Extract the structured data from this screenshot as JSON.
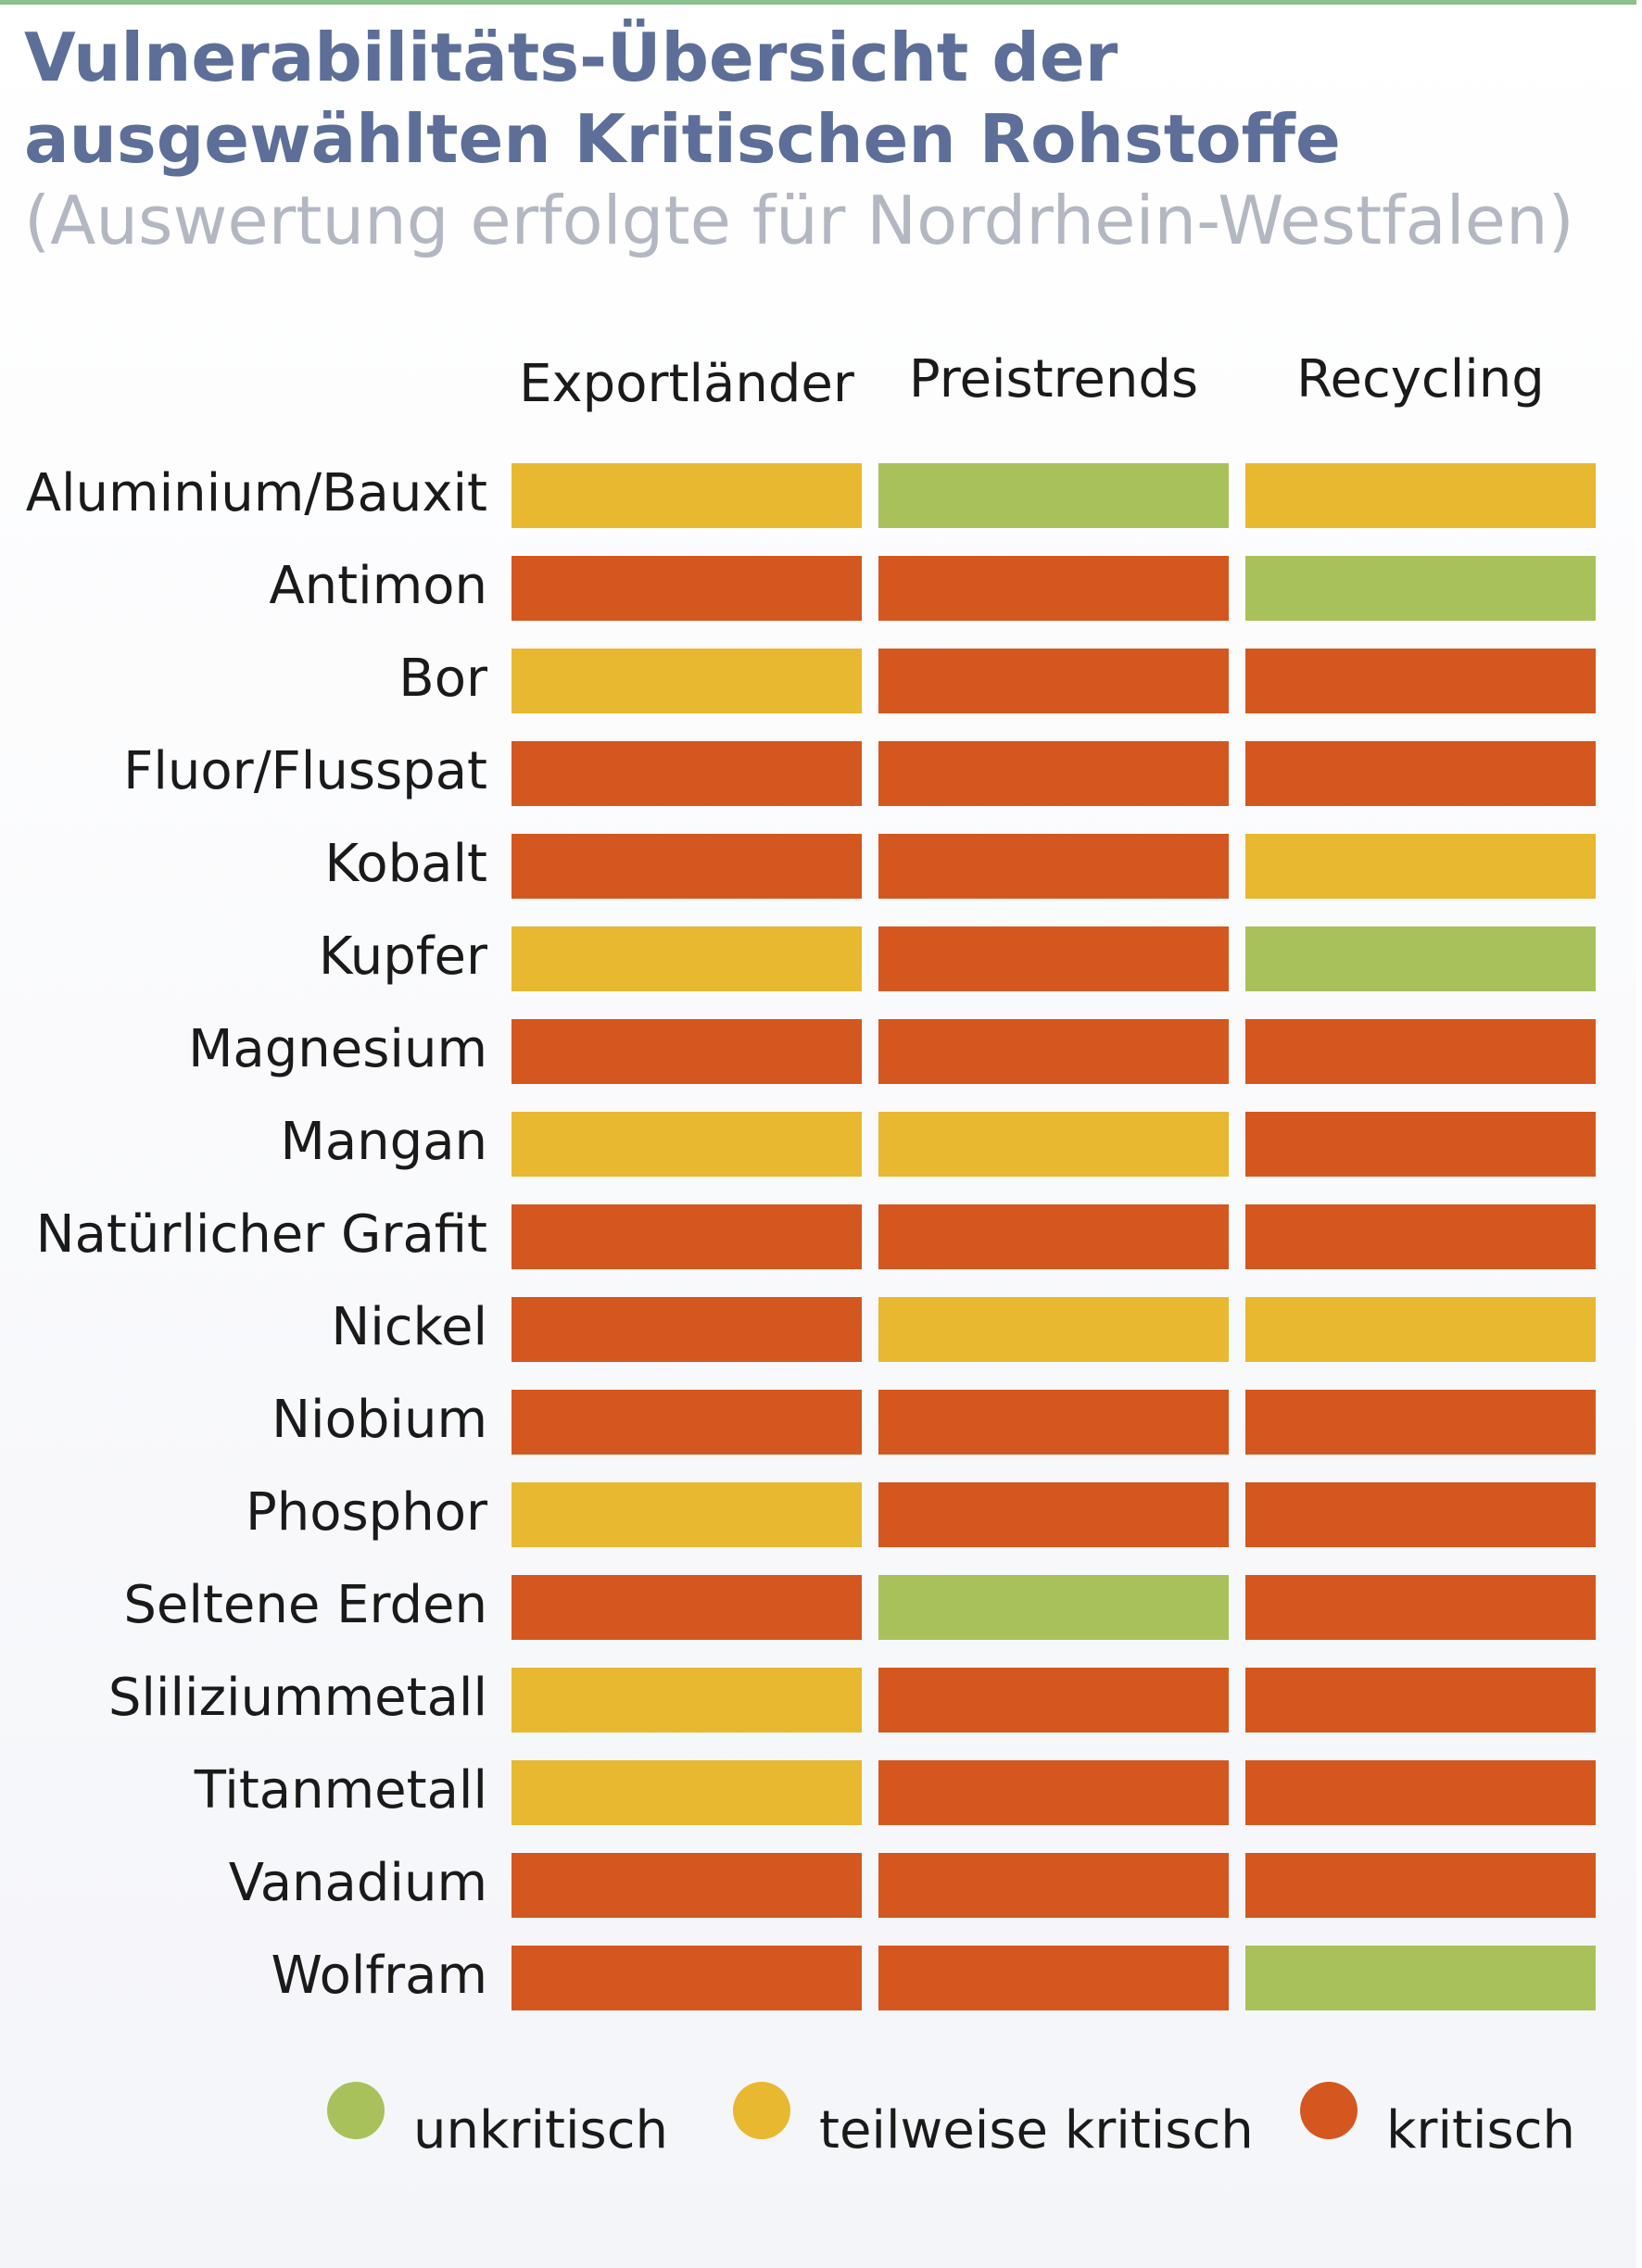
{
  "title": {
    "main": "Vulnerabilitäts-Übersicht der ausgewählten Kritischen Rohstoffe",
    "subtitle": "(Auswertung erfolgte für Nordrhein-Westfalen)"
  },
  "colors": {
    "unkritisch": "#a8c15a",
    "teilweise kritisch": "#e8b830",
    "kritisch": "#d4571f",
    "title": "#5d6f98",
    "subtitle": "#b3b7c1",
    "top_line": "#8cc08d"
  },
  "chart_data": {
    "type": "heatmap",
    "columns": [
      "Exportländer",
      "Preistrends",
      "Recycling"
    ],
    "rows": [
      {
        "label": "Aluminium/Bauxit",
        "values": [
          "teilweise kritisch",
          "unkritisch",
          "teilweise kritisch"
        ]
      },
      {
        "label": "Antimon",
        "values": [
          "kritisch",
          "kritisch",
          "unkritisch"
        ]
      },
      {
        "label": "Bor",
        "values": [
          "teilweise kritisch",
          "kritisch",
          "kritisch"
        ]
      },
      {
        "label": "Fluor/Flusspat",
        "values": [
          "kritisch",
          "kritisch",
          "kritisch"
        ]
      },
      {
        "label": "Kobalt",
        "values": [
          "kritisch",
          "kritisch",
          "teilweise kritisch"
        ]
      },
      {
        "label": "Kupfer",
        "values": [
          "teilweise kritisch",
          "kritisch",
          "unkritisch"
        ]
      },
      {
        "label": "Magnesium",
        "values": [
          "kritisch",
          "kritisch",
          "kritisch"
        ]
      },
      {
        "label": "Mangan",
        "values": [
          "teilweise kritisch",
          "teilweise kritisch",
          "kritisch"
        ]
      },
      {
        "label": "Natürlicher Grafit",
        "values": [
          "kritisch",
          "kritisch",
          "kritisch"
        ]
      },
      {
        "label": "Nickel",
        "values": [
          "kritisch",
          "teilweise kritisch",
          "teilweise kritisch"
        ]
      },
      {
        "label": "Niobium",
        "values": [
          "kritisch",
          "kritisch",
          "kritisch"
        ]
      },
      {
        "label": "Phosphor",
        "values": [
          "teilweise kritisch",
          "kritisch",
          "kritisch"
        ]
      },
      {
        "label": "Seltene Erden",
        "values": [
          "kritisch",
          "unkritisch",
          "kritisch"
        ]
      },
      {
        "label": "Sliliziummetall",
        "values": [
          "teilweise kritisch",
          "kritisch",
          "kritisch"
        ]
      },
      {
        "label": "Titanmetall",
        "values": [
          "teilweise kritisch",
          "kritisch",
          "kritisch"
        ]
      },
      {
        "label": "Vanadium",
        "values": [
          "kritisch",
          "kritisch",
          "kritisch"
        ]
      },
      {
        "label": "Wolfram",
        "values": [
          "kritisch",
          "kritisch",
          "unkritisch"
        ]
      }
    ],
    "legend": [
      "unkritisch",
      "teilweise kritisch",
      "kritisch"
    ],
    "legend_position": "bottom"
  }
}
